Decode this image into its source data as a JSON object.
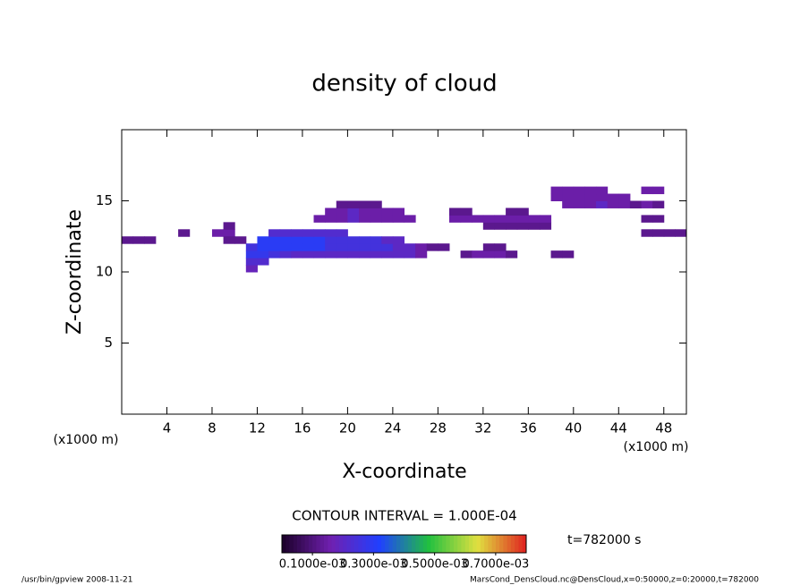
{
  "chart_data": {
    "type": "contour",
    "title": "density of cloud",
    "x_label": "X-coordinate",
    "y_label": "Z-coordinate",
    "x_unit": "(x1000 m)",
    "x_unit_right": "(x1000 m)",
    "xlim": [
      0,
      50
    ],
    "ylim": [
      0,
      20
    ],
    "xticks": [
      4,
      8,
      12,
      16,
      20,
      24,
      28,
      32,
      36,
      40,
      44,
      48
    ],
    "yticks": [
      5,
      10,
      15
    ],
    "cell_width": 1,
    "cell_height": 0.5,
    "contour_interval": "CONTOUR INTERVAL = 1.000E-04",
    "time_label": "t=782000 s",
    "colormap": [
      "#1a0028",
      "#7020b0",
      "#2040ff",
      "#20c040",
      "#e0e040",
      "#e02020"
    ],
    "colorbar_lim": [
      0,
      0.0008
    ],
    "colorbar_ticks": [
      {
        "value": 0.0001,
        "label": "0.1000e-03"
      },
      {
        "value": 0.0003,
        "label": "0.3000e-03"
      },
      {
        "value": 0.0005,
        "label": "0.5000e-03"
      },
      {
        "value": 0.0007,
        "label": "0.7000e-03"
      }
    ],
    "footer_left": "/usr/bin/gpview   2008-11-21",
    "footer_right": "MarsCond_DensCloud.nc@DensCloud,x=0:50000,z=0:20000,t=782000",
    "cells": [
      {
        "x": 0.5,
        "z": 12.25,
        "value": 0.00012
      },
      {
        "x": 1.5,
        "z": 12.25,
        "value": 0.00012
      },
      {
        "x": 2.5,
        "z": 12.25,
        "value": 0.00012
      },
      {
        "x": 5.5,
        "z": 12.75,
        "value": 0.00012
      },
      {
        "x": 8.5,
        "z": 12.75,
        "value": 0.00015
      },
      {
        "x": 9.5,
        "z": 12.75,
        "value": 0.00015
      },
      {
        "x": 9.5,
        "z": 12.25,
        "value": 0.00012
      },
      {
        "x": 10.5,
        "z": 12.25,
        "value": 0.00012
      },
      {
        "x": 9.5,
        "z": 13.25,
        "value": 0.00012
      },
      {
        "x": 11.5,
        "z": 10.25,
        "value": 0.00018
      },
      {
        "x": 11.5,
        "z": 10.75,
        "value": 0.00022
      },
      {
        "x": 12.5,
        "z": 10.75,
        "value": 0.00022
      },
      {
        "x": 11.5,
        "z": 11.25,
        "value": 0.00028
      },
      {
        "x": 12.5,
        "z": 11.25,
        "value": 0.00028
      },
      {
        "x": 13.5,
        "z": 11.25,
        "value": 0.00025
      },
      {
        "x": 14.5,
        "z": 11.25,
        "value": 0.00022
      },
      {
        "x": 15.5,
        "z": 11.25,
        "value": 0.0002
      },
      {
        "x": 16.5,
        "z": 11.25,
        "value": 0.0002
      },
      {
        "x": 17.5,
        "z": 11.25,
        "value": 0.0002
      },
      {
        "x": 18.5,
        "z": 11.25,
        "value": 0.0002
      },
      {
        "x": 19.5,
        "z": 11.25,
        "value": 0.0002
      },
      {
        "x": 20.5,
        "z": 11.25,
        "value": 0.0002
      },
      {
        "x": 21.5,
        "z": 11.25,
        "value": 0.0002
      },
      {
        "x": 22.5,
        "z": 11.25,
        "value": 0.0002
      },
      {
        "x": 23.5,
        "z": 11.25,
        "value": 0.0002
      },
      {
        "x": 24.5,
        "z": 11.25,
        "value": 0.0002
      },
      {
        "x": 25.5,
        "z": 11.25,
        "value": 0.0002
      },
      {
        "x": 26.5,
        "z": 11.25,
        "value": 0.00015
      },
      {
        "x": 11.5,
        "z": 11.75,
        "value": 0.00025
      },
      {
        "x": 12.5,
        "z": 11.75,
        "value": 0.0003
      },
      {
        "x": 13.5,
        "z": 11.75,
        "value": 0.0003
      },
      {
        "x": 14.5,
        "z": 11.75,
        "value": 0.0003
      },
      {
        "x": 15.5,
        "z": 11.75,
        "value": 0.0003
      },
      {
        "x": 16.5,
        "z": 11.75,
        "value": 0.0003
      },
      {
        "x": 17.5,
        "z": 11.75,
        "value": 0.0003
      },
      {
        "x": 18.5,
        "z": 11.75,
        "value": 0.00025
      },
      {
        "x": 19.5,
        "z": 11.75,
        "value": 0.00025
      },
      {
        "x": 20.5,
        "z": 11.75,
        "value": 0.00025
      },
      {
        "x": 21.5,
        "z": 11.75,
        "value": 0.00025
      },
      {
        "x": 22.5,
        "z": 11.75,
        "value": 0.00025
      },
      {
        "x": 23.5,
        "z": 11.75,
        "value": 0.00025
      },
      {
        "x": 24.5,
        "z": 11.75,
        "value": 0.0002
      },
      {
        "x": 25.5,
        "z": 11.75,
        "value": 0.0002
      },
      {
        "x": 26.5,
        "z": 11.75,
        "value": 0.00015
      },
      {
        "x": 12.5,
        "z": 12.25,
        "value": 0.0003
      },
      {
        "x": 13.5,
        "z": 12.25,
        "value": 0.0003
      },
      {
        "x": 14.5,
        "z": 12.25,
        "value": 0.0003
      },
      {
        "x": 15.5,
        "z": 12.25,
        "value": 0.0003
      },
      {
        "x": 16.5,
        "z": 12.25,
        "value": 0.0003
      },
      {
        "x": 17.5,
        "z": 12.25,
        "value": 0.0003
      },
      {
        "x": 18.5,
        "z": 12.25,
        "value": 0.00025
      },
      {
        "x": 19.5,
        "z": 12.25,
        "value": 0.00025
      },
      {
        "x": 20.5,
        "z": 12.25,
        "value": 0.00025
      },
      {
        "x": 21.5,
        "z": 12.25,
        "value": 0.00025
      },
      {
        "x": 22.5,
        "z": 12.25,
        "value": 0.00025
      },
      {
        "x": 23.5,
        "z": 12.25,
        "value": 0.0002
      },
      {
        "x": 24.5,
        "z": 12.25,
        "value": 0.0002
      },
      {
        "x": 13.5,
        "z": 12.75,
        "value": 0.00022
      },
      {
        "x": 14.5,
        "z": 12.75,
        "value": 0.00022
      },
      {
        "x": 15.5,
        "z": 12.75,
        "value": 0.00022
      },
      {
        "x": 16.5,
        "z": 12.75,
        "value": 0.00022
      },
      {
        "x": 17.5,
        "z": 12.75,
        "value": 0.00022
      },
      {
        "x": 18.5,
        "z": 12.75,
        "value": 0.00022
      },
      {
        "x": 19.5,
        "z": 12.75,
        "value": 0.00022
      },
      {
        "x": 17.5,
        "z": 13.75,
        "value": 0.00015
      },
      {
        "x": 18.5,
        "z": 13.75,
        "value": 0.00015
      },
      {
        "x": 19.5,
        "z": 13.75,
        "value": 0.00015
      },
      {
        "x": 20.5,
        "z": 13.75,
        "value": 0.0002
      },
      {
        "x": 21.5,
        "z": 13.75,
        "value": 0.00015
      },
      {
        "x": 22.5,
        "z": 13.75,
        "value": 0.00015
      },
      {
        "x": 23.5,
        "z": 13.75,
        "value": 0.00015
      },
      {
        "x": 24.5,
        "z": 13.75,
        "value": 0.00015
      },
      {
        "x": 25.5,
        "z": 13.75,
        "value": 0.00015
      },
      {
        "x": 18.5,
        "z": 14.25,
        "value": 0.00015
      },
      {
        "x": 19.5,
        "z": 14.25,
        "value": 0.00015
      },
      {
        "x": 20.5,
        "z": 14.25,
        "value": 0.0002
      },
      {
        "x": 21.5,
        "z": 14.25,
        "value": 0.00015
      },
      {
        "x": 22.5,
        "z": 14.25,
        "value": 0.00015
      },
      {
        "x": 23.5,
        "z": 14.25,
        "value": 0.00015
      },
      {
        "x": 24.5,
        "z": 14.25,
        "value": 0.00015
      },
      {
        "x": 19.5,
        "z": 14.75,
        "value": 0.00012
      },
      {
        "x": 20.5,
        "z": 14.75,
        "value": 0.00012
      },
      {
        "x": 21.5,
        "z": 14.75,
        "value": 0.00012
      },
      {
        "x": 22.5,
        "z": 14.75,
        "value": 0.00012
      },
      {
        "x": 27.5,
        "z": 11.75,
        "value": 0.00012
      },
      {
        "x": 28.5,
        "z": 11.75,
        "value": 0.00012
      },
      {
        "x": 30.5,
        "z": 11.25,
        "value": 0.00012
      },
      {
        "x": 31.5,
        "z": 11.25,
        "value": 0.00015
      },
      {
        "x": 32.5,
        "z": 11.25,
        "value": 0.00015
      },
      {
        "x": 33.5,
        "z": 11.25,
        "value": 0.00015
      },
      {
        "x": 34.5,
        "z": 11.25,
        "value": 0.00012
      },
      {
        "x": 32.5,
        "z": 11.75,
        "value": 0.00012
      },
      {
        "x": 33.5,
        "z": 11.75,
        "value": 0.00012
      },
      {
        "x": 32.5,
        "z": 13.25,
        "value": 0.00012
      },
      {
        "x": 33.5,
        "z": 13.25,
        "value": 0.00012
      },
      {
        "x": 34.5,
        "z": 13.25,
        "value": 0.00012
      },
      {
        "x": 35.5,
        "z": 13.25,
        "value": 0.00012
      },
      {
        "x": 36.5,
        "z": 13.25,
        "value": 0.00012
      },
      {
        "x": 37.5,
        "z": 13.25,
        "value": 0.00012
      },
      {
        "x": 29.5,
        "z": 13.75,
        "value": 0.00015
      },
      {
        "x": 30.5,
        "z": 13.75,
        "value": 0.00015
      },
      {
        "x": 31.5,
        "z": 13.75,
        "value": 0.00015
      },
      {
        "x": 32.5,
        "z": 13.75,
        "value": 0.00015
      },
      {
        "x": 33.5,
        "z": 13.75,
        "value": 0.00015
      },
      {
        "x": 34.5,
        "z": 13.75,
        "value": 0.00015
      },
      {
        "x": 35.5,
        "z": 13.75,
        "value": 0.00015
      },
      {
        "x": 36.5,
        "z": 13.75,
        "value": 0.00015
      },
      {
        "x": 37.5,
        "z": 13.75,
        "value": 0.00015
      },
      {
        "x": 29.5,
        "z": 14.25,
        "value": 0.00012
      },
      {
        "x": 30.5,
        "z": 14.25,
        "value": 0.00012
      },
      {
        "x": 34.5,
        "z": 14.25,
        "value": 0.00012
      },
      {
        "x": 35.5,
        "z": 14.25,
        "value": 0.00012
      },
      {
        "x": 39.5,
        "z": 14.75,
        "value": 0.00015
      },
      {
        "x": 40.5,
        "z": 14.75,
        "value": 0.00015
      },
      {
        "x": 41.5,
        "z": 14.75,
        "value": 0.00015
      },
      {
        "x": 42.5,
        "z": 14.75,
        "value": 0.0002
      },
      {
        "x": 43.5,
        "z": 14.75,
        "value": 0.00015
      },
      {
        "x": 44.5,
        "z": 14.75,
        "value": 0.00015
      },
      {
        "x": 45.5,
        "z": 14.75,
        "value": 0.00015
      },
      {
        "x": 38.5,
        "z": 15.25,
        "value": 0.00015
      },
      {
        "x": 39.5,
        "z": 15.25,
        "value": 0.00015
      },
      {
        "x": 40.5,
        "z": 15.25,
        "value": 0.00015
      },
      {
        "x": 41.5,
        "z": 15.25,
        "value": 0.00015
      },
      {
        "x": 42.5,
        "z": 15.25,
        "value": 0.00015
      },
      {
        "x": 43.5,
        "z": 15.25,
        "value": 0.00015
      },
      {
        "x": 44.5,
        "z": 15.25,
        "value": 0.00015
      },
      {
        "x": 38.5,
        "z": 15.75,
        "value": 0.00015
      },
      {
        "x": 39.5,
        "z": 15.75,
        "value": 0.00015
      },
      {
        "x": 40.5,
        "z": 15.75,
        "value": 0.00015
      },
      {
        "x": 41.5,
        "z": 15.75,
        "value": 0.00015
      },
      {
        "x": 42.5,
        "z": 15.75,
        "value": 0.00015
      },
      {
        "x": 38.5,
        "z": 11.25,
        "value": 0.00012
      },
      {
        "x": 39.5,
        "z": 11.25,
        "value": 0.00012
      },
      {
        "x": 46.5,
        "z": 12.75,
        "value": 0.00012
      },
      {
        "x": 47.5,
        "z": 12.75,
        "value": 0.00012
      },
      {
        "x": 48.5,
        "z": 12.75,
        "value": 0.00012
      },
      {
        "x": 49.5,
        "z": 12.75,
        "value": 0.00012
      },
      {
        "x": 46.5,
        "z": 13.75,
        "value": 0.00012
      },
      {
        "x": 47.5,
        "z": 13.75,
        "value": 0.00012
      },
      {
        "x": 45.5,
        "z": 14.75,
        "value": 0.00012
      },
      {
        "x": 46.5,
        "z": 14.75,
        "value": 0.00015
      },
      {
        "x": 47.5,
        "z": 14.75,
        "value": 0.00012
      },
      {
        "x": 46.5,
        "z": 15.75,
        "value": 0.00015
      },
      {
        "x": 47.5,
        "z": 15.75,
        "value": 0.00015
      }
    ]
  }
}
